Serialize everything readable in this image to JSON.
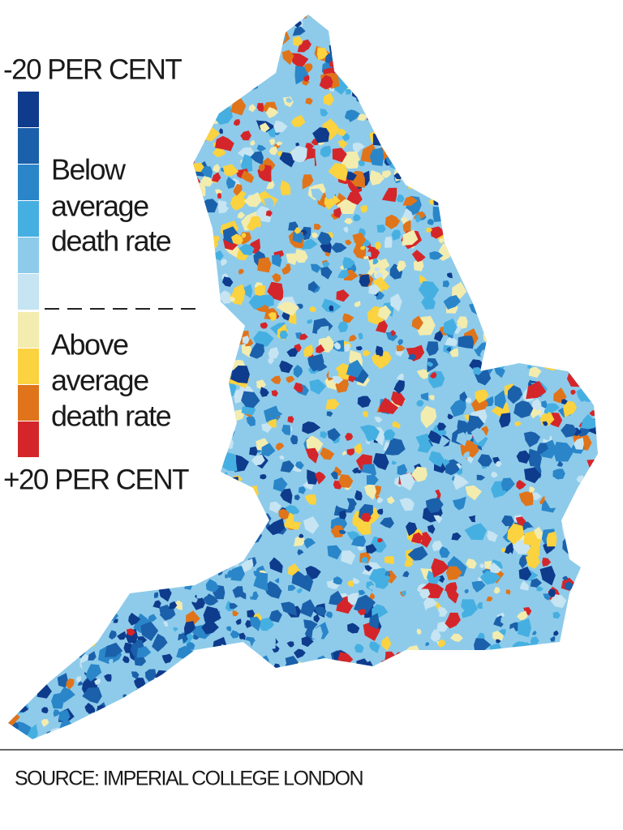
{
  "legend": {
    "top_label": "-20 PER CENT",
    "below_label": [
      "Below",
      "average",
      "death rate"
    ],
    "above_label": [
      "Above",
      "average",
      "death rate"
    ],
    "bottom_label": "+20 PER CENT",
    "colors": [
      "#0e3b8c",
      "#1b60aa",
      "#2a86c9",
      "#46afe1",
      "#8ecbea",
      "#c6e4f2",
      "#f3ecaf",
      "#fbd23f",
      "#e0741a",
      "#d4262a"
    ]
  },
  "source": "SOURCE: IMPERIAL COLLEGE LONDON"
}
